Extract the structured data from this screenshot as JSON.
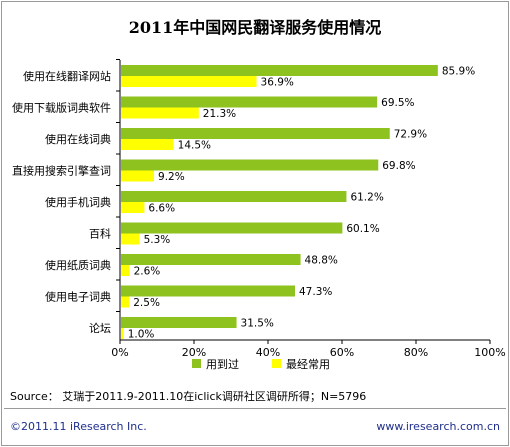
{
  "chart_data": {
    "type": "bar",
    "orientation": "horizontal",
    "title": "2011年中国网民翻译服务使用情况",
    "categories": [
      "使用在线翻译网站",
      "使用下载版词典软件",
      "使用在线词典",
      "直接用搜索引擎查词",
      "使用手机词典",
      "百科",
      "使用纸质词典",
      "使用电子词典",
      "论坛"
    ],
    "series": [
      {
        "name": "用到过",
        "color": "#8dc21f",
        "values": [
          85.9,
          69.5,
          72.9,
          69.8,
          61.2,
          60.1,
          48.8,
          47.3,
          31.5
        ],
        "labels": [
          "85.9%",
          "69.5%",
          "72.9%",
          "69.8%",
          "61.2%",
          "60.1%",
          "48.8%",
          "47.3%",
          "31.5%"
        ]
      },
      {
        "name": "最经常用",
        "color": "#ffff00",
        "values": [
          36.9,
          21.3,
          14.5,
          9.2,
          6.6,
          5.3,
          2.6,
          2.5,
          1.0
        ],
        "labels": [
          "36.9%",
          "21.3%",
          "14.5%",
          "9.2%",
          "6.6%",
          "5.3%",
          "2.6%",
          "2.5%",
          "1.0%"
        ]
      }
    ],
    "xlim": [
      0,
      100
    ],
    "xticks": [
      "0%",
      "20%",
      "40%",
      "60%",
      "80%",
      "100%"
    ],
    "grid": false,
    "legend_position": "bottom"
  },
  "source": "Source： 艾瑞于2011.9-2011.10在iclick调研社区调研所得；N=5796",
  "footer": {
    "copyright": "©2011.11 iResearch Inc.",
    "url": "www.iresearch.com.cn"
  }
}
